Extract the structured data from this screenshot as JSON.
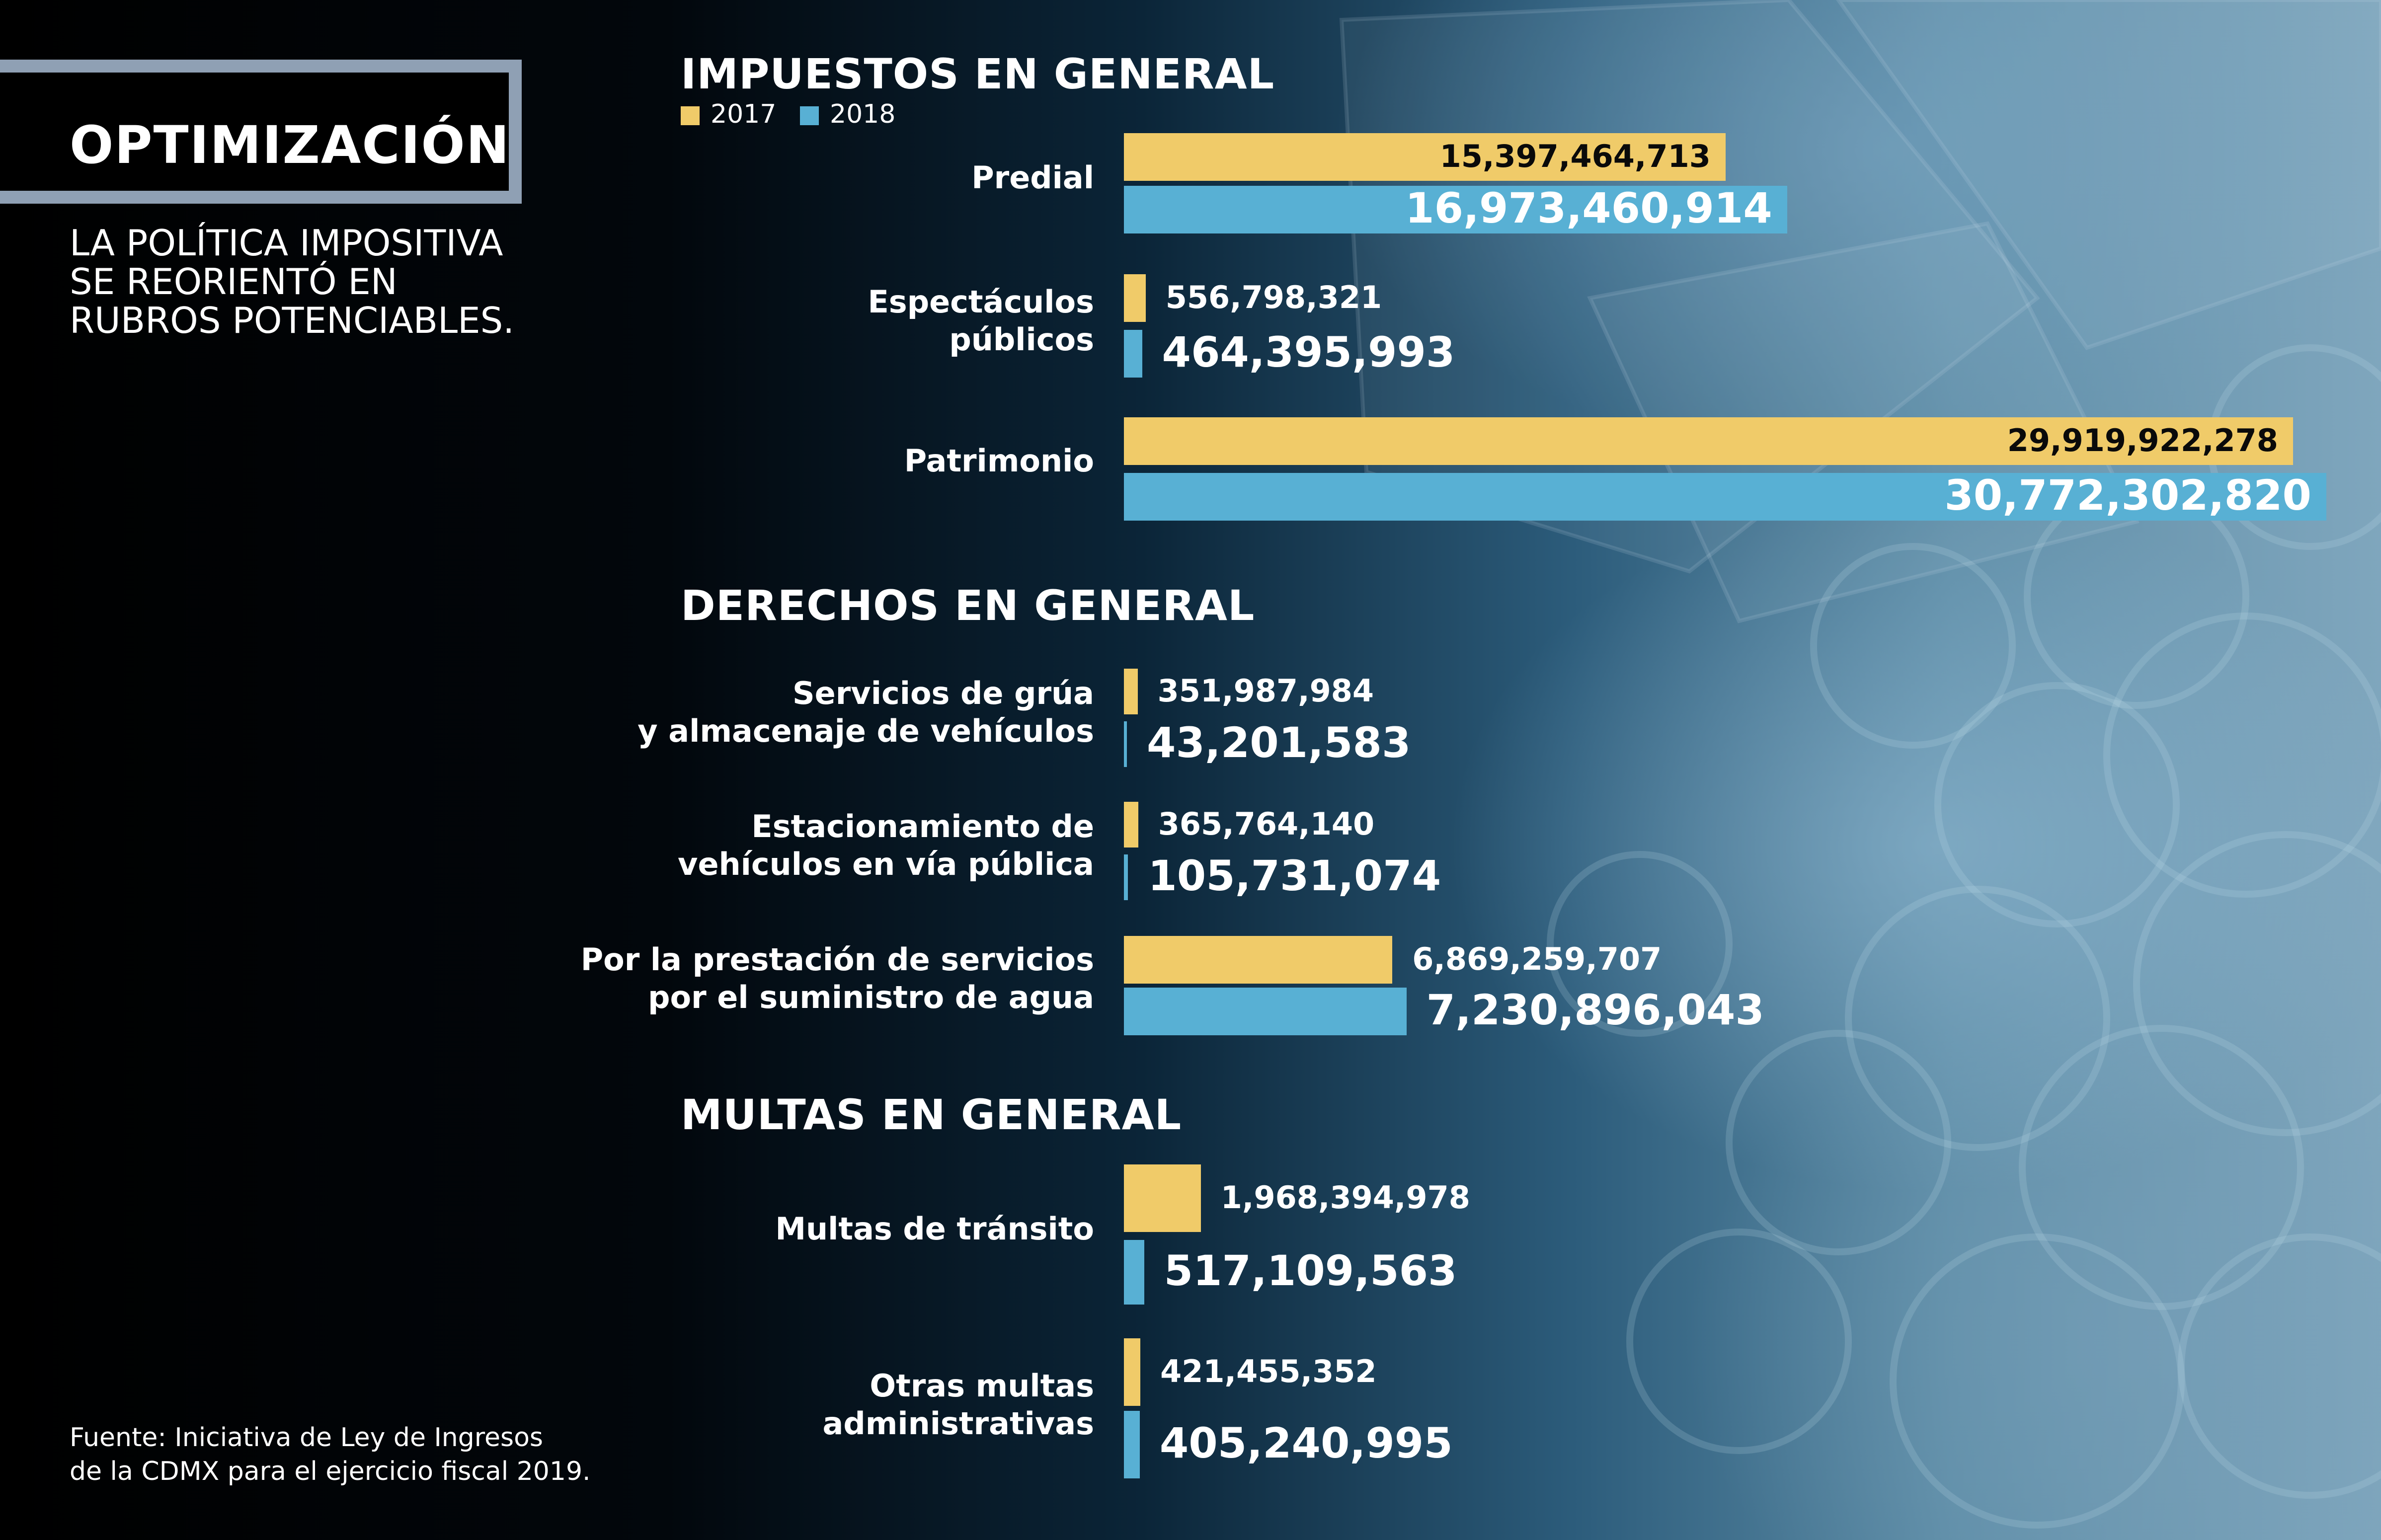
{
  "header": {
    "title": "OPTIMIZACIÓN",
    "subtitle": "LA POLÍTICA IMPOSITIVA SE REORIENTÓ EN RUBROS POTENCIABLES."
  },
  "legend": [
    {
      "label": "2017",
      "color": "#f0cb69"
    },
    {
      "label": "2018",
      "color": "#58b0d4"
    }
  ],
  "source": {
    "line1": "Fuente: Iniciativa de Ley de Ingresos",
    "line2": "de la CDMX para el ejercicio fiscal 2019."
  },
  "colors": {
    "bar_2017": "#f0cb69",
    "bar_2018": "#58b0d4",
    "title_border": "#8fa0b4",
    "background": "#02060b"
  },
  "chart_data": [
    {
      "type": "bar",
      "orientation": "horizontal",
      "title": "IMPUESTOS EN GENERAL",
      "categories": [
        [
          "Predial"
        ],
        [
          "Espectáculos",
          "públicos"
        ],
        [
          "Patrimonio"
        ]
      ],
      "series": [
        {
          "name": "2017",
          "values": [
            15397464713,
            556798321,
            29919922278
          ],
          "labels": [
            "15,397,464,713",
            "556,798,321",
            "29,919,922,278"
          ]
        },
        {
          "name": "2018",
          "values": [
            16973460914,
            464395993,
            30772302820
          ],
          "labels": [
            "16,973,460,914",
            "464,395,993",
            "30,772,302,820"
          ]
        }
      ]
    },
    {
      "type": "bar",
      "orientation": "horizontal",
      "title": "DERECHOS EN GENERAL",
      "categories": [
        [
          "Servicios de grúa",
          "y almacenaje de vehículos"
        ],
        [
          "Estacionamiento de",
          "vehículos en vía pública"
        ],
        [
          "Por la prestación de servicios",
          "por el suministro de agua"
        ]
      ],
      "series": [
        {
          "name": "2017",
          "values": [
            351987984,
            365764140,
            6869259707
          ],
          "labels": [
            "351,987,984",
            "365,764,140",
            "6,869,259,707"
          ]
        },
        {
          "name": "2018",
          "values": [
            43201583,
            105731074,
            7230896043
          ],
          "labels": [
            "43,201,583",
            "105,731,074",
            "7,230,896,043"
          ]
        }
      ]
    },
    {
      "type": "bar",
      "orientation": "horizontal",
      "title": "MULTAS EN GENERAL",
      "categories": [
        [
          "Multas de tránsito"
        ],
        [
          "Otras multas",
          "administrativas"
        ]
      ],
      "series": [
        {
          "name": "2017",
          "values": [
            1968394978,
            421455352
          ],
          "labels": [
            "1,968,394,978",
            "421,455,352"
          ]
        },
        {
          "name": "2018",
          "values": [
            517109563,
            405240995
          ],
          "labels": [
            "517,109,563",
            "405,240,995"
          ]
        }
      ]
    }
  ]
}
